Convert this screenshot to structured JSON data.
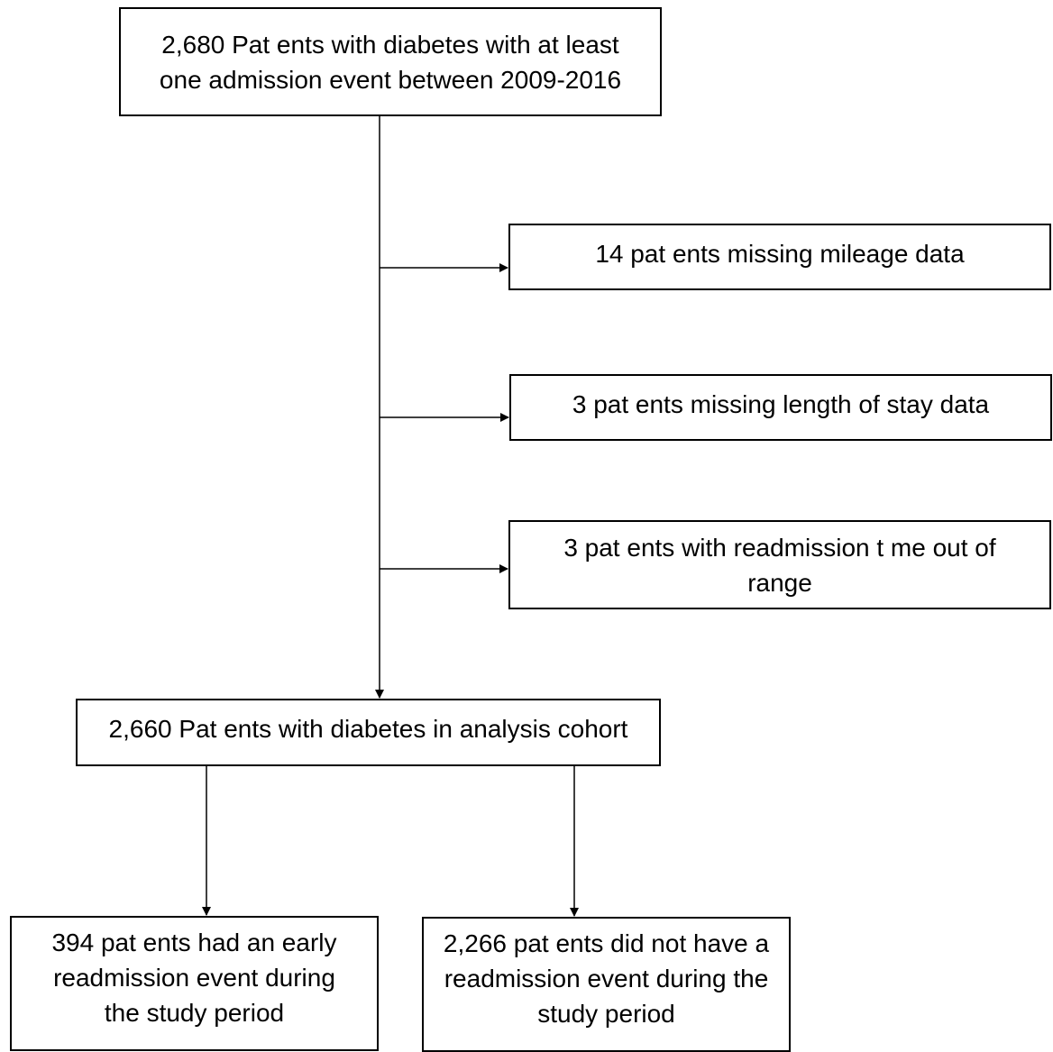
{
  "flowchart": {
    "start": {
      "text": "2,680 Pat ents with diabetes with at least one admission event between 2009-2016"
    },
    "exclusions": [
      {
        "text": "14 pat ents missing mileage data"
      },
      {
        "text": "3 pat ents missing length of stay data"
      },
      {
        "text": "3 pat ents with readmission t me out of range"
      }
    ],
    "cohort": {
      "text": "2,660 Pat ents with diabetes in analysis cohort"
    },
    "outcomes": [
      {
        "text": "394 pat ents had an early readmission event during the study period"
      },
      {
        "text": "2,266 pat ents did not have a readmission event during the study period"
      }
    ]
  }
}
